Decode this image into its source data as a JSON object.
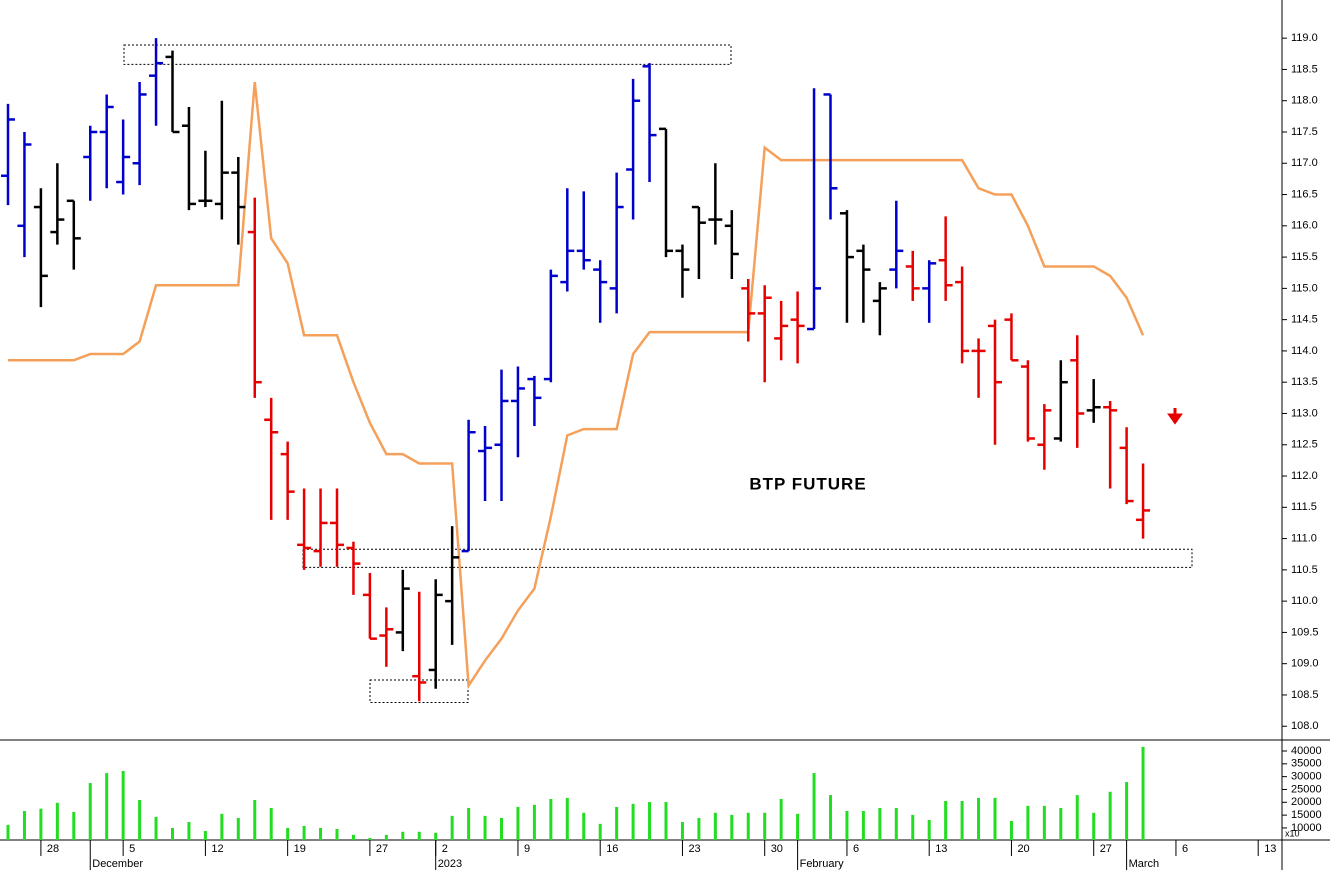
{
  "chart_data": [
    {
      "type": "ohlc",
      "annotation": "BTP FUTURE",
      "ylim": [
        107.78,
        119.61
      ],
      "yticks": [
        {
          "value": 108,
          "label": "108.0"
        },
        108.5,
        {
          "value": 109,
          "label": "109.0"
        },
        109.5,
        {
          "value": 110,
          "label": "110.0"
        },
        110.5,
        {
          "value": 111,
          "label": "111.0"
        },
        111.5,
        {
          "value": 112,
          "label": "112.0"
        },
        112.5,
        {
          "value": 113,
          "label": "113.0"
        },
        113.5,
        {
          "value": 114,
          "label": "114.0"
        },
        114.5,
        {
          "value": 115,
          "label": "115.0"
        },
        115.5,
        {
          "value": 116,
          "label": "116.0"
        },
        116.5,
        {
          "value": 117,
          "label": "117.0"
        },
        117.5,
        {
          "value": 118,
          "label": "118.0"
        },
        118.5,
        {
          "value": 119,
          "label": "119.0"
        }
      ],
      "open": [
        116.8,
        116.0,
        116.3,
        115.9,
        116.4,
        117.1,
        117.5,
        116.7,
        117.0,
        118.4,
        118.7,
        117.6,
        116.4,
        116.35,
        116.85,
        115.9,
        112.9,
        112.35,
        110.9,
        110.8,
        111.25,
        110.85,
        110.1,
        109.45,
        109.5,
        108.8,
        108.9,
        110.0,
        110.8,
        112.4,
        112.5,
        113.2,
        113.55,
        113.55,
        115.1,
        115.6,
        115.3,
        115.0,
        116.9,
        118.55,
        117.55,
        115.6,
        116.3,
        116.1,
        116.0,
        115.0,
        114.6,
        114.2,
        114.5,
        114.35,
        118.1,
        116.2,
        115.6,
        114.8,
        115.3,
        115.35,
        115.0,
        115.45,
        115.1,
        114.0,
        114.4,
        114.5,
        113.75,
        112.5,
        112.6,
        113.85,
        113.05,
        113.1,
        112.45,
        111.3,
        null,
        null,
        null,
        null,
        null,
        null,
        null
      ],
      "high": [
        117.95,
        117.5,
        116.6,
        117.0,
        116.4,
        117.6,
        118.1,
        117.7,
        118.3,
        119.0,
        118.8,
        117.9,
        117.2,
        118.0,
        117.1,
        116.45,
        113.25,
        112.55,
        111.8,
        111.8,
        111.8,
        110.95,
        110.45,
        109.9,
        110.5,
        110.15,
        110.35,
        111.2,
        112.9,
        112.8,
        113.7,
        113.75,
        113.6,
        115.3,
        116.6,
        116.55,
        115.45,
        116.85,
        118.35,
        118.6,
        117.55,
        115.7,
        116.3,
        117.0,
        116.25,
        115.15,
        115.05,
        114.8,
        114.95,
        118.2,
        118.1,
        116.25,
        115.7,
        115.1,
        116.4,
        115.6,
        115.45,
        116.15,
        115.35,
        114.2,
        114.5,
        114.6,
        113.85,
        113.15,
        113.85,
        114.25,
        113.55,
        113.2,
        112.78,
        112.2,
        null,
        null,
        null,
        null,
        null,
        null,
        null
      ],
      "low": [
        116.33,
        115.5,
        114.7,
        115.7,
        115.3,
        116.4,
        116.6,
        116.5,
        116.65,
        117.6,
        117.5,
        116.25,
        116.3,
        116.1,
        115.7,
        113.25,
        111.3,
        111.3,
        110.5,
        110.55,
        110.55,
        110.1,
        109.4,
        108.95,
        109.2,
        108.4,
        108.6,
        109.3,
        110.8,
        111.6,
        111.6,
        112.3,
        112.8,
        113.5,
        114.95,
        115.3,
        114.45,
        114.6,
        116.1,
        116.7,
        115.5,
        114.85,
        115.15,
        115.7,
        115.15,
        114.15,
        113.5,
        113.85,
        113.8,
        114.35,
        116.1,
        114.45,
        114.45,
        114.25,
        115.0,
        114.8,
        114.45,
        114.8,
        113.8,
        113.25,
        112.5,
        113.85,
        112.55,
        112.1,
        112.55,
        112.45,
        112.85,
        111.8,
        111.55,
        111.0,
        null,
        null,
        null,
        null,
        null,
        null,
        null
      ],
      "close": [
        117.7,
        117.3,
        115.2,
        116.1,
        115.8,
        117.5,
        117.9,
        117.1,
        118.1,
        118.6,
        117.5,
        116.35,
        116.4,
        116.85,
        116.3,
        113.5,
        112.7,
        111.75,
        110.85,
        111.25,
        110.9,
        110.6,
        109.4,
        109.55,
        110.2,
        108.7,
        110.1,
        110.7,
        112.7,
        112.45,
        113.2,
        113.4,
        113.25,
        115.2,
        115.6,
        115.45,
        115.1,
        116.3,
        118.0,
        117.45,
        115.6,
        115.3,
        116.05,
        116.1,
        115.55,
        114.6,
        114.85,
        114.4,
        114.4,
        115.0,
        116.6,
        115.5,
        115.3,
        115.0,
        115.6,
        115.0,
        115.4,
        115.05,
        114.0,
        114.0,
        113.5,
        113.85,
        112.6,
        113.05,
        113.5,
        113.0,
        113.1,
        113.05,
        111.6,
        111.45,
        null,
        null,
        null,
        null,
        null,
        null,
        null
      ],
      "bar_colors": [
        "#0000cc",
        "#0000cc",
        "#000000",
        "#000000",
        "#000000",
        "#0000cc",
        "#0000cc",
        "#0000cc",
        "#0000cc",
        "#0000cc",
        "#000000",
        "#000000",
        "#000000",
        "#000000",
        "#000000",
        "#e60000",
        "#e60000",
        "#e60000",
        "#e60000",
        "#e60000",
        "#e60000",
        "#e60000",
        "#e60000",
        "#e60000",
        "#000000",
        "#e60000",
        "#000000",
        "#000000",
        "#0000cc",
        "#0000cc",
        "#0000cc",
        "#0000cc",
        "#0000cc",
        "#0000cc",
        "#0000cc",
        "#0000cc",
        "#0000cc",
        "#0000cc",
        "#0000cc",
        "#0000cc",
        "#000000",
        "#000000",
        "#000000",
        "#000000",
        "#000000",
        "#e60000",
        "#e60000",
        "#e60000",
        "#e60000",
        "#0000cc",
        "#0000cc",
        "#000000",
        "#000000",
        "#000000",
        "#0000cc",
        "#e60000",
        "#0000cc",
        "#e60000",
        "#e60000",
        "#e60000",
        "#e60000",
        "#e60000",
        "#e60000",
        "#e60000",
        "#000000",
        "#e60000",
        "#000000",
        "#e60000",
        "#e60000",
        "#e60000",
        null,
        null,
        null,
        null,
        null,
        null,
        null
      ],
      "line": {
        "color": "#f5a05a",
        "values": [
          113.85,
          113.85,
          113.85,
          113.85,
          113.85,
          113.95,
          113.95,
          113.95,
          114.15,
          115.05,
          115.05,
          115.05,
          115.05,
          115.05,
          115.05,
          118.3,
          115.8,
          115.4,
          114.25,
          114.25,
          114.25,
          113.5,
          112.85,
          112.35,
          112.35,
          112.2,
          112.2,
          112.2,
          108.65,
          109.05,
          109.4,
          109.85,
          110.2,
          111.35,
          112.65,
          112.75,
          112.75,
          112.75,
          113.95,
          114.3,
          114.3,
          114.3,
          114.3,
          114.3,
          114.3,
          114.3,
          117.25,
          117.05,
          117.05,
          117.05,
          117.05,
          117.05,
          117.05,
          117.05,
          117.05,
          117.05,
          117.05,
          117.05,
          117.05,
          116.6,
          116.5,
          116.5,
          116.0,
          115.35,
          115.35,
          115.35,
          115.35,
          115.2,
          114.85,
          114.25,
          null,
          null,
          null,
          null,
          null,
          null,
          null
        ]
      },
      "zones": [
        {
          "low": 118.58,
          "high": 118.89
        },
        {
          "low": 110.54,
          "high": 110.83
        },
        {
          "low": 108.38,
          "high": 108.74
        }
      ]
    },
    {
      "type": "bar",
      "categories": [
        null,
        null,
        "28",
        null,
        null,
        null,
        null,
        "5",
        null,
        null,
        null,
        null,
        "12",
        null,
        null,
        null,
        null,
        "19",
        null,
        null,
        null,
        null,
        "27",
        null,
        null,
        null,
        "2",
        null,
        null,
        null,
        null,
        "9",
        null,
        null,
        null,
        null,
        "16",
        null,
        null,
        null,
        null,
        "23",
        null,
        null,
        null,
        null,
        "30",
        null,
        null,
        null,
        null,
        "6",
        null,
        null,
        null,
        null,
        "13",
        null,
        null,
        null,
        null,
        "20",
        null,
        null,
        null,
        null,
        "27",
        null,
        null,
        null,
        null,
        "6",
        null,
        null,
        null,
        null,
        "13"
      ],
      "month_labels": [
        null,
        null,
        null,
        null,
        null,
        "December",
        null,
        null,
        null,
        null,
        null,
        null,
        null,
        null,
        null,
        null,
        null,
        null,
        null,
        null,
        null,
        null,
        null,
        null,
        null,
        null,
        "2023",
        null,
        null,
        null,
        null,
        null,
        null,
        null,
        null,
        null,
        null,
        null,
        null,
        null,
        null,
        null,
        null,
        null,
        null,
        null,
        null,
        null,
        "February",
        null,
        null,
        null,
        null,
        null,
        null,
        null,
        null,
        null,
        null,
        null,
        null,
        null,
        null,
        null,
        null,
        null,
        null,
        null,
        "March",
        null,
        null,
        null,
        null,
        null,
        null,
        null,
        null
      ],
      "values": [
        11200,
        16600,
        17500,
        19800,
        16200,
        27500,
        31400,
        32200,
        20900,
        14300,
        10000,
        12300,
        8800,
        15500,
        13900,
        20900,
        17800,
        10000,
        10800,
        10000,
        9600,
        7300,
        6100,
        7300,
        8500,
        8500,
        8100,
        14700,
        17800,
        14700,
        13900,
        18200,
        19000,
        21300,
        21700,
        15900,
        11600,
        18200,
        19400,
        20100,
        20100,
        12300,
        13900,
        15900,
        15100,
        15900,
        15900,
        21300,
        15500,
        31400,
        22800,
        16600,
        16600,
        17800,
        17800,
        15100,
        13100,
        20500,
        20500,
        21700,
        21700,
        12700,
        18600,
        18600,
        17800,
        22800,
        15900,
        24100,
        27900,
        41600,
        null,
        null,
        null,
        null,
        null,
        null,
        null
      ],
      "color": "#22dd22",
      "ylim": [
        5300,
        43900
      ],
      "yticks": [
        10000,
        15000,
        20000,
        25000,
        30000,
        35000,
        40000
      ],
      "scale_label": "x10"
    }
  ]
}
